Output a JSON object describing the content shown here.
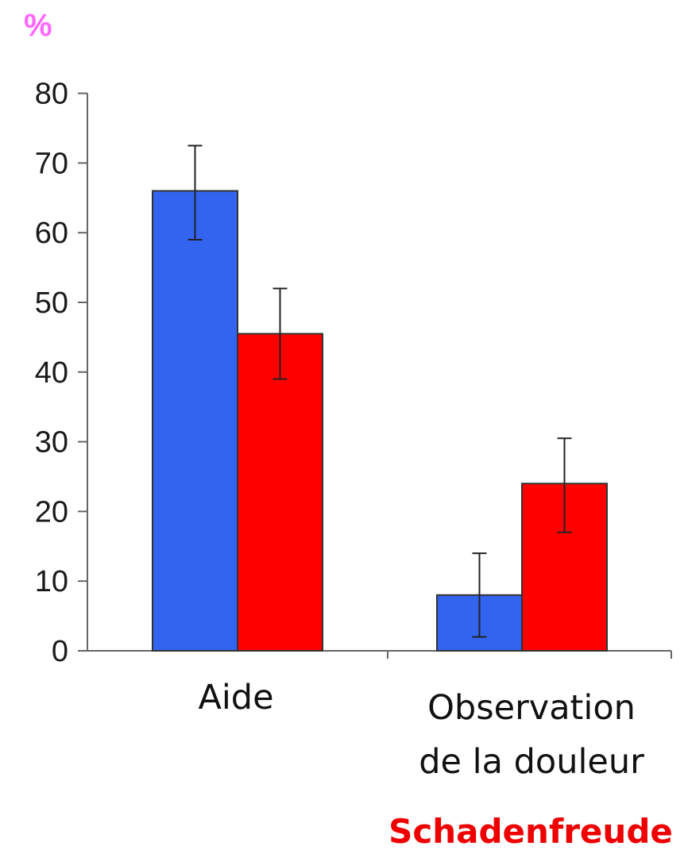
{
  "chart_data": {
    "type": "bar",
    "title": "",
    "xlabel": "",
    "ylabel": "%",
    "ylim": [
      0,
      80
    ],
    "yticks": [
      0,
      10,
      20,
      30,
      40,
      50,
      60,
      70,
      80
    ],
    "categories": [
      "Aide",
      "Observation\nde la douleur"
    ],
    "series": [
      {
        "color": "#3264f0",
        "values": [
          66,
          8
        ],
        "errors": [
          [
            59,
            72.5
          ],
          [
            2,
            14
          ]
        ]
      },
      {
        "color": "#ff0000",
        "values": [
          45.5,
          24
        ],
        "errors": [
          [
            39,
            52
          ],
          [
            17,
            30.5
          ]
        ]
      }
    ],
    "grid": false,
    "legend": "none",
    "annotations": [
      "Schadenfreude"
    ]
  },
  "colors": {
    "annotation": "#ee0000",
    "ylabel": "#ff66ff"
  }
}
